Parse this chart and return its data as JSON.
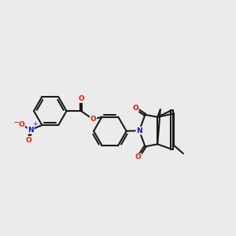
{
  "bg_color": "#ebebeb",
  "C_col": "#1a1a1a",
  "N_col": "#1010ee",
  "O_col": "#ee1010",
  "bond_color": "#1a1a1a",
  "lw": 1.5,
  "dpi": 100,
  "figw": 3.0,
  "figh": 3.0,
  "xlim": [
    -0.5,
    9.5
  ],
  "ylim": [
    1.5,
    7.5
  ]
}
